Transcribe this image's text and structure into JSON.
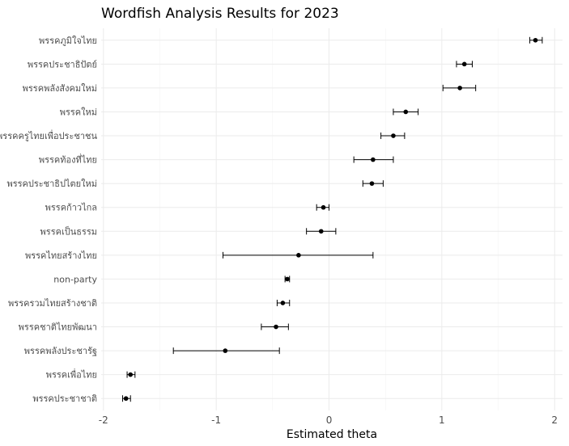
{
  "chart_data": {
    "type": "scatter",
    "title": "Wordfish Analysis Results for 2023",
    "xlabel": "Estimated theta",
    "ylabel": "",
    "xlim": [
      -2.02,
      2.07
    ],
    "xticks": [
      -2,
      -1,
      0,
      1,
      2
    ],
    "xtick_labels": [
      "-2",
      "-1",
      "0",
      "1",
      "2"
    ],
    "grid": true,
    "legend": "none",
    "point_color": "#000000",
    "categories": [
      "พรรคภูมิใจไทย",
      "พรรคประชาธิปัตย์",
      "พรรคพลังสังคมใหม่",
      "พรรคใหม่",
      "พรรคครูไทยเพื่อประชาชน",
      "พรรคท้องที่ไทย",
      "พรรคประชาธิปไตยใหม่",
      "พรรคก้าวไกล",
      "พรรคเป็นธรรม",
      "พรรคไทยสร้างไทย",
      "non-party",
      "พรรครวมไทยสร้างชาติ",
      "พรรคชาติไทยพัฒนา",
      "พรรคพลังประชารัฐ",
      "พรรคเพื่อไทย",
      "พรรคประชาชาติ"
    ],
    "estimates": [
      1.83,
      1.2,
      1.16,
      0.68,
      0.57,
      0.39,
      0.38,
      -0.05,
      -0.07,
      -0.27,
      -0.37,
      -0.41,
      -0.47,
      -0.92,
      -1.76,
      -1.8
    ],
    "lower": [
      1.78,
      1.13,
      1.01,
      0.57,
      0.46,
      0.22,
      0.3,
      -0.11,
      -0.2,
      -0.94,
      -0.39,
      -0.46,
      -0.6,
      -1.38,
      -1.79,
      -1.83
    ],
    "upper": [
      1.89,
      1.27,
      1.3,
      0.79,
      0.67,
      0.57,
      0.48,
      0.0,
      0.06,
      0.39,
      -0.35,
      -0.35,
      -0.36,
      -0.44,
      -1.72,
      -1.76
    ]
  }
}
